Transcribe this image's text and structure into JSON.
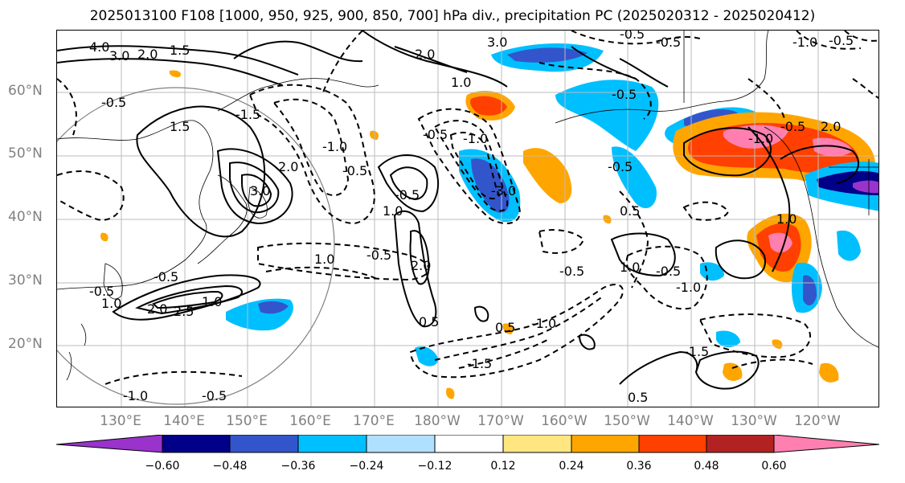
{
  "title": "2025013100 F108 [1000, 950, 925, 900, 850, 700] hPa div., precipitation PC (2025020312 - 2025020412)",
  "lat_ticks": [
    "60°N",
    "50°N",
    "40°N",
    "30°N",
    "20°N"
  ],
  "lon_ticks": [
    "130°E",
    "140°E",
    "150°E",
    "160°E",
    "170°E",
    "180°W",
    "170°W",
    "160°W",
    "150°W",
    "140°W",
    "130°W",
    "120°W"
  ],
  "colorbar": {
    "labels": [
      "−0.60",
      "−0.48",
      "−0.36",
      "−0.24",
      "−0.12",
      "0.12",
      "0.24",
      "0.36",
      "0.48",
      "0.60"
    ],
    "colors": [
      "#9933cc",
      "#000088",
      "#3355cc",
      "#00bfff",
      "#b0e0ff",
      "#ffffff",
      "#ffe680",
      "#ffa500",
      "#ff4000",
      "#b22222",
      "#ff80b0"
    ]
  },
  "contour_labels": [
    "4.0",
    "3.0",
    "2.0",
    "1.5",
    "-0.5",
    "1.5",
    "-1.5",
    "2.0",
    "3.0",
    "-1.0",
    "-0.5",
    "2.0",
    "1.0",
    "3.0",
    "-3.0",
    "-0.5",
    "-1.0",
    "2.0",
    "-0.5",
    "1.0",
    "1.0",
    "-0.5",
    "0.5",
    "-1.5",
    "-1.0",
    "0.5",
    "-0.5",
    "-1.0",
    "2.0",
    "2.5",
    "1.0",
    "-0.5",
    "1.0",
    "-0.5",
    "-1.0",
    "-0.5",
    "0.5",
    "-1.5",
    "-0.5",
    "0.5",
    "-0.5",
    "1.0",
    "-0.5",
    "-1.0",
    "-0.5",
    "-0.5",
    "-0.5",
    "-1.0",
    "1.0",
    "2.0",
    "-0.5"
  ]
}
